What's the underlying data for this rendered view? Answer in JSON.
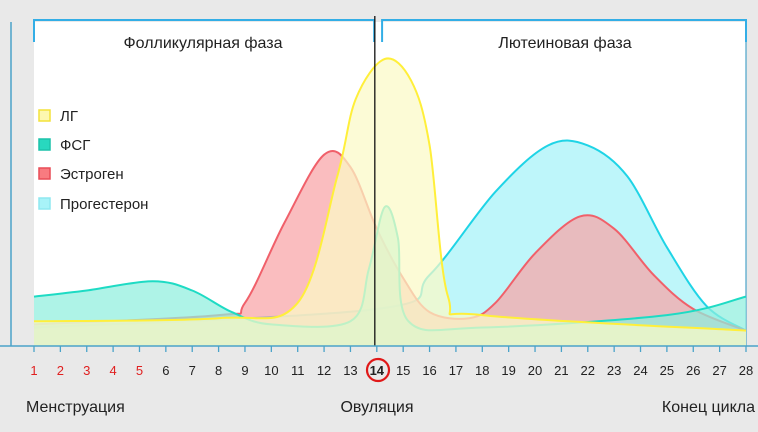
{
  "chart_data": {
    "type": "area",
    "phases": [
      {
        "label": "Фолликулярная фаза",
        "from": 1,
        "to": 13.9
      },
      {
        "label": "Лютеиновая фаза",
        "from": 14.2,
        "to": 28
      }
    ],
    "ovulation_day": 14,
    "x": [
      1,
      28
    ],
    "x_ticks": [
      "1",
      "2",
      "3",
      "4",
      "5",
      "6",
      "7",
      "8",
      "9",
      "10",
      "11",
      "12",
      "13",
      "14",
      "15",
      "16",
      "17",
      "18",
      "19",
      "20",
      "21",
      "22",
      "23",
      "24",
      "25",
      "26",
      "27",
      "28"
    ],
    "menstruation_days": [
      1,
      2,
      3,
      4,
      5
    ],
    "bottom_labels": {
      "left": "Менструация",
      "center": "Овуляция",
      "right": "Конец цикла"
    },
    "series": [
      {
        "name": "ЛГ",
        "color": "#ffef3a",
        "fill": "#fbf9c6",
        "points": [
          [
            1,
            0.8
          ],
          [
            8,
            0.9
          ],
          [
            11,
            1.4
          ],
          [
            12.5,
            5.5
          ],
          [
            13.2,
            8.0
          ],
          [
            14.3,
            9.3
          ],
          [
            15.3,
            8.6
          ],
          [
            16,
            6.5
          ],
          [
            16.7,
            1.6
          ],
          [
            18,
            1.0
          ],
          [
            28,
            0.5
          ]
        ]
      },
      {
        "name": "ФСГ",
        "color": "#1edbc4",
        "fill": "#8fefde",
        "points": [
          [
            1,
            1.6
          ],
          [
            3,
            1.8
          ],
          [
            5.5,
            2.1
          ],
          [
            7,
            1.8
          ],
          [
            8.5,
            1.1
          ],
          [
            10,
            0.7
          ],
          [
            13,
            0.8
          ],
          [
            13.7,
            2.5
          ],
          [
            14.3,
            4.5
          ],
          [
            14.8,
            3.5
          ],
          [
            15.2,
            0.8
          ],
          [
            18,
            0.6
          ],
          [
            25,
            1.0
          ],
          [
            28,
            1.6
          ]
        ]
      },
      {
        "name": "Эстроген",
        "color": "#f0606a",
        "fill": "#f8a4a6",
        "points": [
          [
            1,
            0.7
          ],
          [
            8,
            1.0
          ],
          [
            9,
            1.4
          ],
          [
            10.5,
            4.0
          ],
          [
            12,
            6.2
          ],
          [
            13,
            5.8
          ],
          [
            14,
            3.8
          ],
          [
            15,
            2.2
          ],
          [
            16,
            1.1
          ],
          [
            17.5,
            0.9
          ],
          [
            18.5,
            1.4
          ],
          [
            20,
            3.0
          ],
          [
            21.7,
            4.2
          ],
          [
            23,
            3.8
          ],
          [
            24.5,
            2.3
          ],
          [
            26,
            1.2
          ],
          [
            28,
            0.5
          ]
        ]
      },
      {
        "name": "Прогестерон",
        "color": "#1fd4e6",
        "fill": "#a5f3f8",
        "points": [
          [
            1,
            0.6
          ],
          [
            14,
            1.2
          ],
          [
            16,
            2.3
          ],
          [
            18.5,
            5.0
          ],
          [
            20.5,
            6.5
          ],
          [
            22,
            6.5
          ],
          [
            23.5,
            5.5
          ],
          [
            25,
            3.2
          ],
          [
            26.5,
            1.3
          ],
          [
            28,
            0.5
          ]
        ]
      }
    ]
  }
}
